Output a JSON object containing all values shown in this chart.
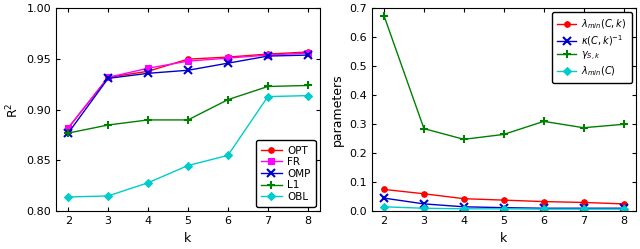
{
  "k": [
    2,
    3,
    4,
    5,
    6,
    7,
    8
  ],
  "left": {
    "OPT": [
      0.882,
      0.932,
      0.938,
      0.95,
      0.952,
      0.955,
      0.957
    ],
    "FR": [
      0.882,
      0.932,
      0.941,
      0.948,
      0.951,
      0.954,
      0.956
    ],
    "OMP": [
      0.877,
      0.931,
      0.936,
      0.939,
      0.946,
      0.953,
      0.954
    ],
    "L1": [
      0.877,
      0.885,
      0.89,
      0.89,
      0.91,
      0.923,
      0.924
    ],
    "OBL": [
      0.814,
      0.815,
      0.828,
      0.845,
      0.855,
      0.913,
      0.914
    ],
    "colors": {
      "OPT": "#ff0000",
      "FR": "#ff00ff",
      "OMP": "#0000cd",
      "L1": "#008000",
      "OBL": "#00cccc"
    },
    "markers": {
      "OPT": "o",
      "FR": "s",
      "OMP": "x",
      "L1": "+",
      "OBL": "D"
    },
    "ylabel": "R$^2$",
    "xlabel": "k",
    "ylim": [
      0.8,
      1.0
    ],
    "yticks": [
      0.8,
      0.85,
      0.9,
      0.95,
      1.0
    ]
  },
  "right": {
    "lambda_min_Ck": [
      0.075,
      0.06,
      0.043,
      0.038,
      0.033,
      0.03,
      0.025
    ],
    "kappa_inv": [
      0.045,
      0.025,
      0.015,
      0.012,
      0.01,
      0.01,
      0.01
    ],
    "gamma_sk": [
      0.675,
      0.285,
      0.248,
      0.265,
      0.31,
      0.288,
      0.3
    ],
    "lambda_min_C": [
      0.015,
      0.01,
      0.008,
      0.008,
      0.007,
      0.007,
      0.007
    ],
    "colors": {
      "lambda_min_Ck": "#ff0000",
      "kappa_inv": "#0000cd",
      "gamma_sk": "#008000",
      "lambda_min_C": "#00cccc"
    },
    "markers": {
      "lambda_min_Ck": "o",
      "kappa_inv": "x",
      "gamma_sk": "+",
      "lambda_min_C": "D"
    },
    "labels": {
      "lambda_min_Ck": "$\\lambda_{min}(C,k)$",
      "kappa_inv": "$\\kappa(C,k)^{-1}$",
      "gamma_sk": "$\\gamma_{S,k}$",
      "lambda_min_C": "$\\lambda_{min}(C)$"
    },
    "ylabel": "parameters",
    "xlabel": "k",
    "ylim": [
      0.0,
      0.7
    ],
    "yticks": [
      0.0,
      0.1,
      0.2,
      0.3,
      0.4,
      0.5,
      0.6,
      0.7
    ]
  }
}
